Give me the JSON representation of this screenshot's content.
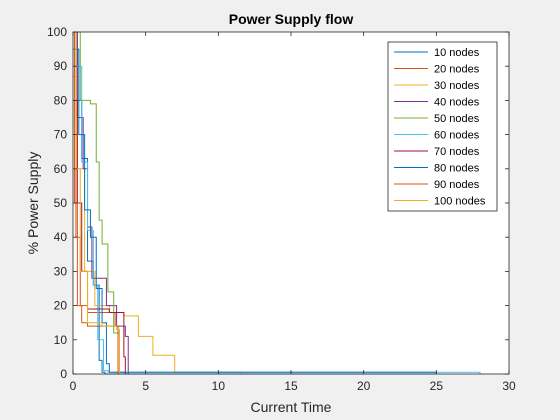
{
  "chart_data": {
    "type": "line",
    "title": "Power Supply flow",
    "xlabel": "Current Time",
    "ylabel": "% Power Supply",
    "xlim": [
      0,
      30
    ],
    "ylim": [
      0,
      100
    ],
    "xticks": [
      0,
      5,
      10,
      15,
      20,
      25,
      30
    ],
    "yticks": [
      0,
      10,
      20,
      30,
      40,
      50,
      60,
      70,
      80,
      90,
      100
    ],
    "grid": false,
    "legend_position": "top-right",
    "series": [
      {
        "name": "10 nodes",
        "color": "#0072BD",
        "step": true,
        "x": [
          0,
          0.3,
          0.6,
          1.0,
          1.4,
          1.8,
          2.0,
          2.2,
          25.0
        ],
        "y": [
          100,
          80,
          63,
          33,
          26,
          4,
          0.5,
          0,
          0
        ]
      },
      {
        "name": "20 nodes",
        "color": "#D95319",
        "step": true,
        "x": [
          0,
          0.2,
          0.5,
          1.0,
          2.5,
          2.9,
          3.1,
          3.6
        ],
        "y": [
          100,
          40,
          20,
          18,
          18,
          14,
          0.5,
          0
        ]
      },
      {
        "name": "30 nodes",
        "color": "#EDB120",
        "step": true,
        "x": [
          0,
          0.3,
          0.8,
          1.5,
          2.5,
          3.5,
          4.5,
          5.5,
          7.0,
          11.5
        ],
        "y": [
          87,
          60,
          30,
          20,
          18,
          17,
          11,
          5.5,
          0.5,
          0
        ]
      },
      {
        "name": "40 nodes",
        "color": "#7E2F8E",
        "step": true,
        "x": [
          0,
          0.3,
          0.7,
          1.0,
          1.3,
          2.3,
          3.0,
          3.6,
          3.8
        ],
        "y": [
          100,
          75,
          60,
          43,
          28,
          20,
          14,
          11,
          0
        ]
      },
      {
        "name": "50 nodes",
        "color": "#77AC30",
        "step": true,
        "x": [
          0,
          0.5,
          1.2,
          1.6,
          1.8,
          2.0,
          2.4,
          2.8,
          3.2
        ],
        "y": [
          100,
          80,
          79,
          62,
          45,
          38,
          24,
          12,
          0
        ]
      },
      {
        "name": "60 nodes",
        "color": "#4DBEEE",
        "step": true,
        "x": [
          0,
          0.2,
          0.6,
          1.0,
          1.4,
          1.7,
          2.1,
          2.4,
          28.0
        ],
        "y": [
          100,
          90,
          62,
          42,
          26,
          10,
          1,
          0.5,
          0
        ]
      },
      {
        "name": "70 nodes",
        "color": "#A2142F",
        "step": true,
        "x": [
          0,
          0.3,
          0.6,
          1.0,
          2.5,
          3.3,
          3.5,
          3.6
        ],
        "y": [
          80,
          50,
          30,
          19,
          18,
          18,
          5,
          0
        ]
      },
      {
        "name": "80 nodes",
        "color": "#0072BD",
        "step": true,
        "x": [
          0,
          0.4,
          0.8,
          1.2,
          1.6,
          2.0,
          2.3,
          2.5,
          25.0
        ],
        "y": [
          95,
          70,
          48,
          40,
          25,
          15,
          3,
          0.5,
          0
        ]
      },
      {
        "name": "90 nodes",
        "color": "#D95319",
        "step": true,
        "x": [
          0,
          0.1,
          0.3,
          0.6,
          1.0,
          2.0,
          2.9,
          3.1
        ],
        "y": [
          100,
          50,
          20,
          15,
          14,
          14,
          14,
          0
        ]
      },
      {
        "name": "100 nodes",
        "color": "#EDB120",
        "step": true,
        "x": [
          0,
          0.2,
          0.5,
          1.0,
          2.0,
          2.5,
          3.0,
          3.2
        ],
        "y": [
          100,
          60,
          30,
          15,
          14,
          14,
          13,
          0
        ]
      }
    ]
  }
}
